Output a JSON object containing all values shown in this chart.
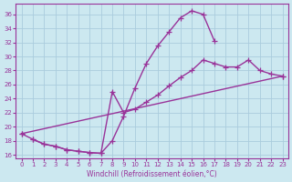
{
  "background_color": "#cce8f0",
  "grid_color": "#aaccdd",
  "line_color": "#993399",
  "marker": "+",
  "markersize": 4,
  "linewidth": 1.0,
  "xlabel": "Windchill (Refroidissement éolien,°C)",
  "ylabel_ticks": [
    16,
    18,
    20,
    22,
    24,
    26,
    28,
    30,
    32,
    34,
    36
  ],
  "xlim": [
    -0.5,
    23.5
  ],
  "ylim": [
    15.5,
    37.5
  ],
  "xticks": [
    0,
    1,
    2,
    3,
    4,
    5,
    6,
    7,
    8,
    9,
    10,
    11,
    12,
    13,
    14,
    15,
    16,
    17,
    18,
    19,
    20,
    21,
    22,
    23
  ],
  "line1_x": [
    0,
    1,
    2,
    3,
    4,
    5,
    6,
    7,
    8,
    9,
    10,
    11,
    12,
    13,
    14,
    15,
    16,
    17
  ],
  "line1_y": [
    19.0,
    18.2,
    17.5,
    17.2,
    16.7,
    16.5,
    16.3,
    16.2,
    18.0,
    21.5,
    25.5,
    29.0,
    31.5,
    33.5,
    35.5,
    36.5,
    36.0,
    32.2
  ],
  "line2_x": [
    1,
    2,
    3,
    4,
    5,
    6,
    7,
    8,
    9,
    10,
    11,
    12,
    13,
    14,
    15,
    16,
    17,
    18,
    19,
    20,
    21,
    22,
    23
  ],
  "line2_y": [
    18.2,
    17.5,
    17.2,
    16.7,
    16.5,
    16.3,
    16.2,
    25.0,
    22.0,
    22.5,
    23.5,
    24.5,
    25.8,
    27.0,
    28.0,
    29.5,
    29.0,
    28.5,
    28.5,
    29.5,
    28.0,
    27.5,
    27.2
  ],
  "line3_x": [
    0,
    23
  ],
  "line3_y": [
    19.0,
    27.2
  ]
}
